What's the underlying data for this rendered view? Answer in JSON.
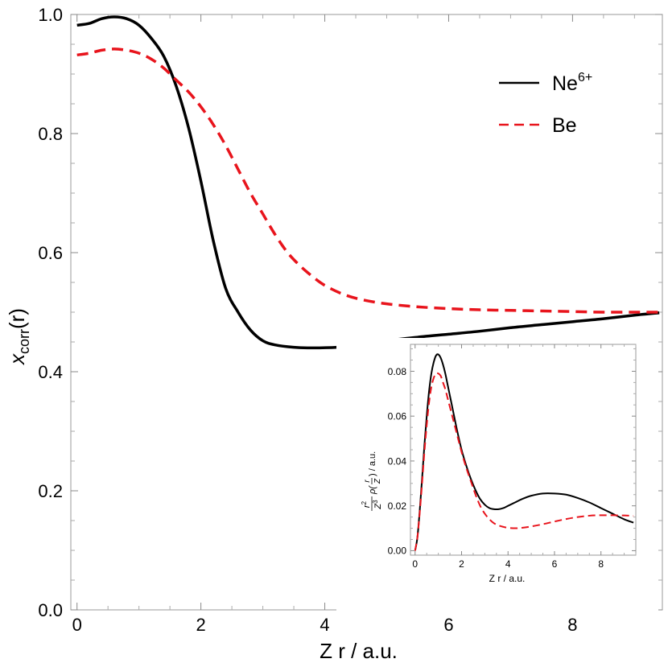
{
  "chart_data": [
    {
      "type": "line",
      "role": "main",
      "xlabel": "Z r / a.u.",
      "ylabel_base": "x",
      "ylabel_sub": "corr",
      "ylabel_tail": "(r)",
      "xlim": [
        -0.1,
        9.45
      ],
      "ylim": [
        0.0,
        1.0
      ],
      "xticks": [
        0,
        2,
        4,
        6,
        8
      ],
      "xtick_labels": [
        "0",
        "2",
        "4",
        "6",
        "8"
      ],
      "yticks": [
        0.0,
        0.2,
        0.4,
        0.6,
        0.8,
        1.0
      ],
      "ytick_labels": [
        "0.0",
        "0.2",
        "0.4",
        "0.6",
        "0.8",
        "1.0"
      ],
      "grid": false,
      "legend_position": "top-right",
      "series": [
        {
          "name": "Ne6+",
          "label_base": "Ne",
          "label_sup": "6+",
          "color": "#000000",
          "dash": "solid",
          "x": [
            0,
            0.2,
            0.4,
            0.6,
            0.8,
            1.0,
            1.2,
            1.4,
            1.6,
            1.8,
            2.0,
            2.2,
            2.4,
            2.6,
            2.8,
            3.0,
            3.2,
            3.5,
            3.8,
            4.2,
            4.6,
            5.0,
            5.5,
            6.0,
            6.5,
            7.0,
            7.5,
            8.0,
            8.5,
            9.0,
            9.4
          ],
          "y": [
            0.982,
            0.985,
            0.993,
            0.996,
            0.993,
            0.982,
            0.96,
            0.93,
            0.88,
            0.81,
            0.72,
            0.62,
            0.54,
            0.5,
            0.47,
            0.452,
            0.445,
            0.441,
            0.44,
            0.441,
            0.445,
            0.452,
            0.458,
            0.463,
            0.468,
            0.474,
            0.479,
            0.484,
            0.489,
            0.495,
            0.499
          ]
        },
        {
          "name": "Be",
          "label_base": "Be",
          "label_sup": "",
          "color": "#e8141c",
          "dash": "dashed",
          "x": [
            0,
            0.2,
            0.4,
            0.6,
            0.8,
            1.0,
            1.2,
            1.4,
            1.6,
            1.8,
            2.0,
            2.2,
            2.4,
            2.6,
            2.8,
            3.0,
            3.2,
            3.4,
            3.6,
            3.8,
            4.0,
            4.3,
            4.6,
            5.0,
            5.5,
            6.0,
            6.5,
            7.0,
            7.5,
            8.0,
            8.5,
            9.0,
            9.4
          ],
          "y": [
            0.932,
            0.935,
            0.94,
            0.942,
            0.94,
            0.935,
            0.925,
            0.91,
            0.89,
            0.87,
            0.845,
            0.815,
            0.78,
            0.74,
            0.7,
            0.665,
            0.63,
            0.6,
            0.578,
            0.56,
            0.545,
            0.53,
            0.521,
            0.514,
            0.509,
            0.506,
            0.504,
            0.503,
            0.502,
            0.501,
            0.5,
            0.5,
            0.5
          ]
        }
      ]
    },
    {
      "type": "line",
      "role": "inset",
      "xlabel": "Z r / a.u.",
      "ylabel_parts": [
        "r",
        "2",
        "Z",
        "3",
        "ρ(",
        "r",
        "Z",
        ") / a.u."
      ],
      "xlim": [
        -0.2,
        9.5
      ],
      "ylim": [
        -0.002,
        0.092
      ],
      "xticks": [
        0,
        2,
        4,
        6,
        8
      ],
      "xtick_labels": [
        "0",
        "2",
        "4",
        "6",
        "8"
      ],
      "yticks": [
        0.0,
        0.02,
        0.04,
        0.06,
        0.08
      ],
      "ytick_labels": [
        "0.00",
        "0.02",
        "0.04",
        "0.06",
        "0.08"
      ],
      "grid": false,
      "series": [
        {
          "name": "Ne6+",
          "color": "#000000",
          "dash": "solid",
          "x": [
            0,
            0.1,
            0.2,
            0.3,
            0.4,
            0.5,
            0.6,
            0.7,
            0.8,
            0.9,
            1.0,
            1.1,
            1.2,
            1.3,
            1.4,
            1.6,
            1.8,
            2.0,
            2.2,
            2.4,
            2.6,
            2.8,
            3.0,
            3.2,
            3.4,
            3.6,
            3.8,
            4.0,
            4.3,
            4.6,
            5.0,
            5.5,
            6.0,
            6.5,
            7.0,
            7.5,
            8.0,
            8.5,
            9.0,
            9.4
          ],
          "y": [
            0.0,
            0.006,
            0.018,
            0.032,
            0.047,
            0.06,
            0.071,
            0.079,
            0.084,
            0.087,
            0.0875,
            0.086,
            0.083,
            0.079,
            0.074,
            0.064,
            0.054,
            0.045,
            0.038,
            0.032,
            0.027,
            0.023,
            0.0205,
            0.019,
            0.0185,
            0.0185,
            0.019,
            0.02,
            0.0215,
            0.023,
            0.0245,
            0.0255,
            0.0255,
            0.025,
            0.0235,
            0.0215,
            0.019,
            0.0165,
            0.014,
            0.0125
          ]
        },
        {
          "name": "Be",
          "color": "#e8141c",
          "dash": "dashed",
          "x": [
            0,
            0.1,
            0.2,
            0.3,
            0.4,
            0.5,
            0.6,
            0.7,
            0.8,
            0.9,
            1.0,
            1.1,
            1.2,
            1.3,
            1.4,
            1.6,
            1.8,
            2.0,
            2.2,
            2.4,
            2.6,
            2.8,
            3.0,
            3.2,
            3.4,
            3.6,
            3.8,
            4.0,
            4.3,
            4.6,
            5.0,
            5.5,
            6.0,
            6.5,
            7.0,
            7.5,
            8.0,
            8.5,
            9.0,
            9.4
          ],
          "y": [
            0.0,
            0.006,
            0.017,
            0.03,
            0.044,
            0.056,
            0.066,
            0.073,
            0.077,
            0.079,
            0.079,
            0.078,
            0.075,
            0.072,
            0.068,
            0.06,
            0.052,
            0.044,
            0.037,
            0.031,
            0.025,
            0.02,
            0.0165,
            0.014,
            0.0122,
            0.0112,
            0.0106,
            0.0102,
            0.01,
            0.0102,
            0.0108,
            0.0118,
            0.013,
            0.0141,
            0.015,
            0.0156,
            0.0158,
            0.0158,
            0.0157,
            0.0155
          ]
        }
      ]
    }
  ]
}
